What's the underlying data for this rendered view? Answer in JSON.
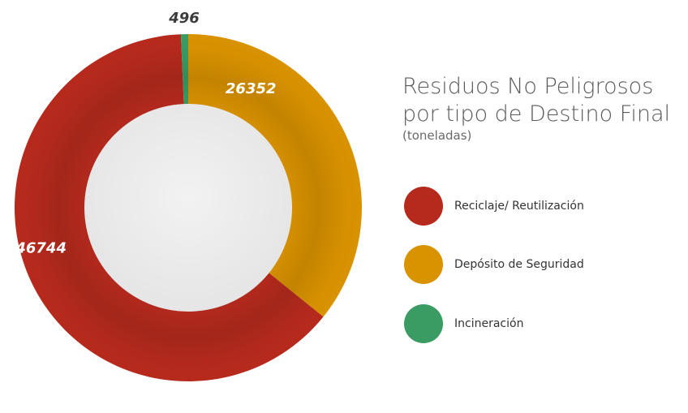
{
  "chart_data": {
    "type": "pie",
    "title": "Residuos No Peligrosos por tipo de Destino Final",
    "subtitle": "(toneladas)",
    "categories": [
      "Reciclaje/ Reutilización",
      "Depósito de Seguridad",
      "Incineración"
    ],
    "values": [
      46744,
      26352,
      496
    ],
    "labels": [
      "46744",
      "26352",
      "496"
    ],
    "colors": [
      "#b62a1d",
      "#d99200",
      "#3a9c63"
    ],
    "legend_position": "right",
    "donut": true
  },
  "title": {
    "line1": "Residuos No Peligrosos",
    "line2": "por tipo de Destino Final",
    "subtitle": "(toneladas)"
  },
  "legend": {
    "items": [
      {
        "label": "Reciclaje/ Reutilización",
        "color": "#b62a1d"
      },
      {
        "label": "Depósito de Seguridad",
        "color": "#d99200"
      },
      {
        "label": "Incineración",
        "color": "#3a9c63"
      }
    ]
  }
}
